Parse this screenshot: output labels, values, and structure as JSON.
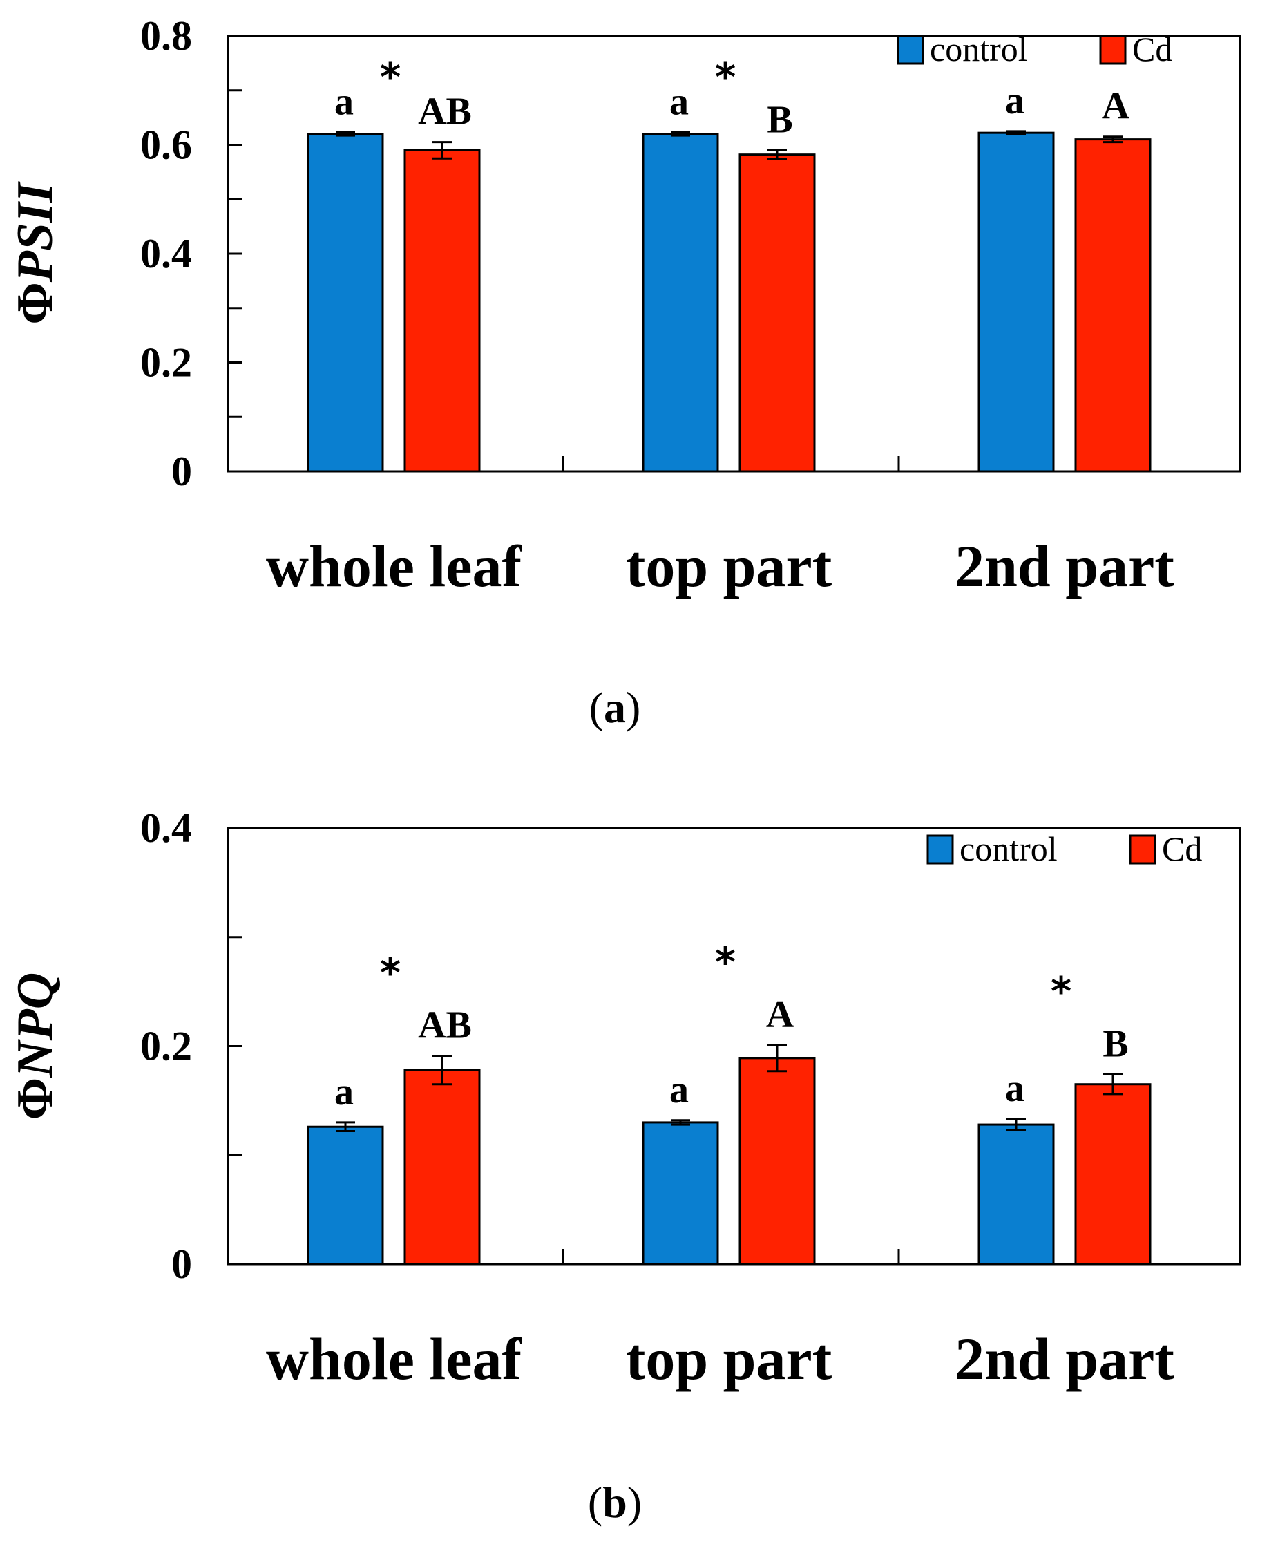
{
  "figure": {
    "panels": [
      "(a)",
      "(b)"
    ],
    "panel_letters": [
      "a",
      "b"
    ]
  },
  "colors": {
    "control": "#0a7fd0",
    "cd": "#ff2200",
    "axis": "#000000"
  },
  "chart_data": [
    {
      "type": "bar",
      "panel": "(a)",
      "title": "",
      "ylabel": "ΦPSII",
      "ylabel_symbol": "Φ",
      "ylabel_sub": "PSII",
      "xlabel": "",
      "ylim": [
        0,
        0.8
      ],
      "yticks": [
        0,
        0.2,
        0.4,
        0.6,
        0.8
      ],
      "ytick_labels": [
        "0",
        "0.2",
        "0.4",
        "0.6",
        "0.8"
      ],
      "categories": [
        "whole leaf",
        "top part",
        "2nd part"
      ],
      "legend": [
        "control",
        "Cd"
      ],
      "legend_position": "top-right",
      "series": [
        {
          "name": "control",
          "values": [
            0.62,
            0.62,
            0.622
          ],
          "errors": [
            0.003,
            0.003,
            0.003
          ],
          "letters": [
            "a",
            "a",
            "a"
          ]
        },
        {
          "name": "Cd",
          "values": [
            0.59,
            0.582,
            0.61
          ],
          "errors": [
            0.015,
            0.008,
            0.005
          ],
          "letters": [
            "AB",
            "B",
            "A"
          ]
        }
      ],
      "significance": [
        "*",
        "*",
        ""
      ]
    },
    {
      "type": "bar",
      "panel": "(b)",
      "title": "",
      "ylabel": "ΦNPQ",
      "ylabel_symbol": "Φ",
      "ylabel_sub": "NPQ",
      "xlabel": "",
      "ylim": [
        0,
        0.4
      ],
      "yticks": [
        0,
        0.2,
        0.4
      ],
      "ytick_labels": [
        "0",
        "0.2",
        "0.4"
      ],
      "categories": [
        "whole leaf",
        "top part",
        "2nd part"
      ],
      "legend": [
        "control",
        "Cd"
      ],
      "legend_position": "top-right",
      "series": [
        {
          "name": "control",
          "values": [
            0.126,
            0.13,
            0.128
          ],
          "errors": [
            0.004,
            0.002,
            0.005
          ],
          "letters": [
            "a",
            "a",
            "a"
          ]
        },
        {
          "name": "Cd",
          "values": [
            0.178,
            0.189,
            0.165
          ],
          "errors": [
            0.013,
            0.012,
            0.009
          ],
          "letters": [
            "AB",
            "A",
            "B"
          ]
        }
      ],
      "significance": [
        "*",
        "*",
        "*"
      ]
    }
  ]
}
